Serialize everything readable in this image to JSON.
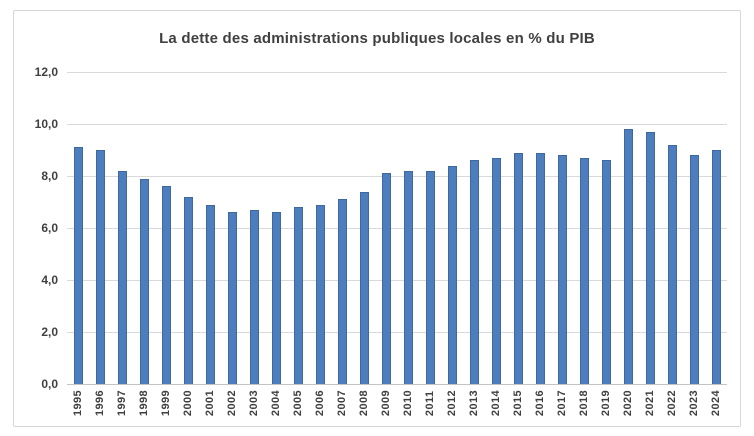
{
  "chart_data": {
    "type": "bar",
    "title": "La dette des administrations publiques locales en % du PIB",
    "categories": [
      "1995",
      "1996",
      "1997",
      "1998",
      "1999",
      "2000",
      "2001",
      "2002",
      "2003",
      "2004",
      "2005",
      "2006",
      "2007",
      "2008",
      "2009",
      "2010",
      "2011",
      "2012",
      "2013",
      "2014",
      "2015",
      "2016",
      "2017",
      "2018",
      "2019",
      "2020",
      "2021",
      "2022",
      "2023",
      "2024"
    ],
    "values": [
      9.1,
      9.0,
      8.2,
      7.9,
      7.6,
      7.2,
      6.9,
      6.6,
      6.7,
      6.6,
      6.8,
      6.9,
      7.1,
      7.4,
      8.1,
      8.2,
      8.2,
      8.4,
      8.6,
      8.7,
      8.9,
      8.9,
      8.8,
      8.7,
      8.6,
      9.8,
      9.7,
      9.2,
      8.8,
      9.0
    ],
    "xlabel": "",
    "ylabel": "",
    "ylim": [
      0,
      12
    ],
    "y_ticks": [
      {
        "label": "12,0",
        "value": 12
      },
      {
        "label": "10,0",
        "value": 10
      },
      {
        "label": "8,0",
        "value": 8
      },
      {
        "label": "6,0",
        "value": 6
      },
      {
        "label": "4,0",
        "value": 4
      },
      {
        "label": "2,0",
        "value": 2
      },
      {
        "label": "0,0",
        "value": 0
      }
    ],
    "grid": true,
    "legend": false,
    "decimal_format": "comma",
    "colors": {
      "bar_fill": "#4d7dbd",
      "bar_border": "#3d68a0",
      "gridline": "#d9d9d9",
      "axis_line": "#c3c3c3",
      "text": "#404040",
      "frame_border": "#d7d7d7",
      "background": "#ffffff"
    }
  }
}
